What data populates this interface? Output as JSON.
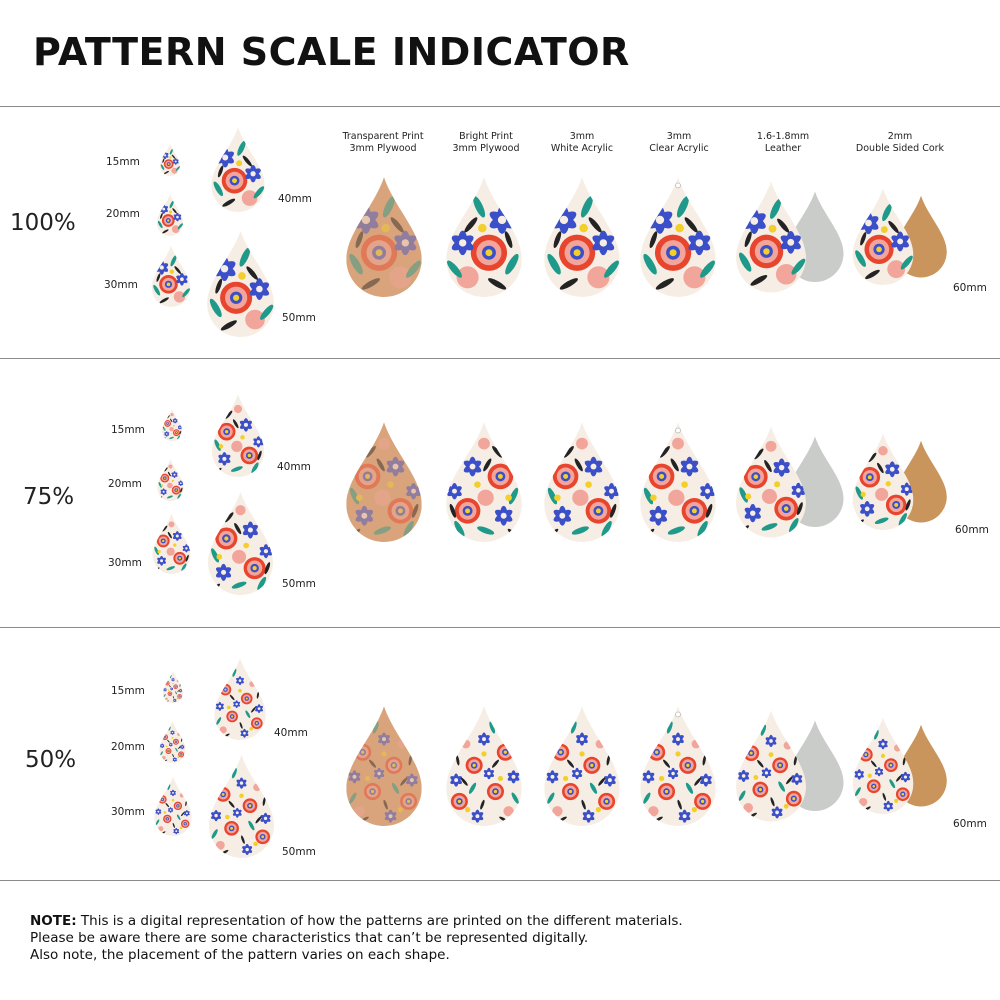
{
  "title": "PATTERN SCALE INDICATOR",
  "materials": [
    {
      "line1": "Transparent Print",
      "line2": "3mm Plywood"
    },
    {
      "line1": "Bright Print",
      "line2": "3mm Plywood"
    },
    {
      "line1": "3mm",
      "line2": "White Acrylic"
    },
    {
      "line1": "3mm",
      "line2": "Clear Acrylic"
    },
    {
      "line1": "1.6-1.8mm",
      "line2": "Leather"
    },
    {
      "line1": "2mm",
      "line2": "Double Sided Cork"
    }
  ],
  "sizes": [
    "15mm",
    "20mm",
    "30mm",
    "40mm",
    "50mm"
  ],
  "large_size": "60mm",
  "scales": [
    "100%",
    "75%",
    "50%"
  ],
  "note": {
    "prefix": "NOTE:",
    "line1": " This is a digital representation of how the patterns are printed on the different materials.",
    "line2": "Please be aware there are some characteristics that can’t be represented digitally.",
    "line3": "Also note, the placement of the pattern varies on each shape."
  },
  "colors": {
    "red": "#e8452e",
    "pink": "#f2a59a",
    "blue": "#3b4fc8",
    "green": "#1f9a8a",
    "black": "#232323",
    "yellow": "#f2cf2a",
    "cream": "#f6eee4",
    "wood": "#d9a47c",
    "leather": "#c9ccc8",
    "cork": "#c9955c"
  }
}
